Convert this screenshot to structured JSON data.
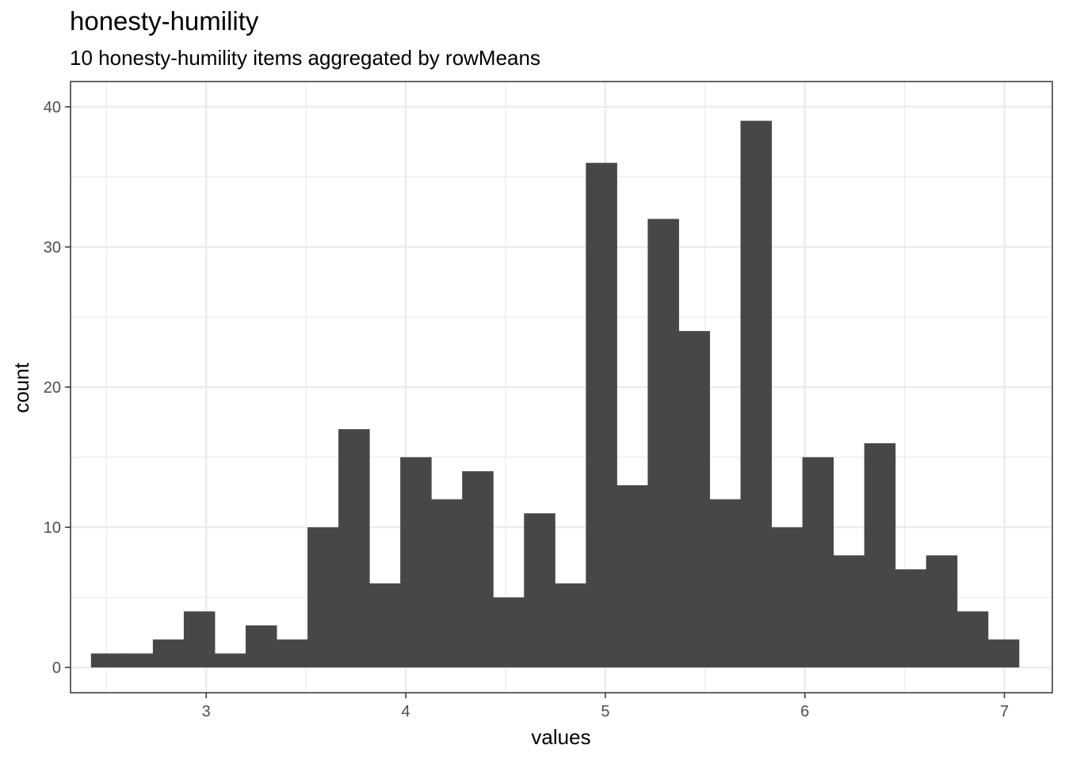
{
  "chart_data": {
    "type": "bar",
    "title": "honesty-humility",
    "subtitle": "10 honesty-humility items aggregated by rowMeans",
    "xlabel": "values",
    "ylabel": "count",
    "xlim": [
      2.32,
      7.24
    ],
    "ylim": [
      -1.8,
      41.8
    ],
    "xticks": [
      3,
      4,
      5,
      6,
      7
    ],
    "yticks": [
      0,
      10,
      20,
      30,
      40
    ],
    "grid": true,
    "bin_width": 0.155,
    "bins": [
      {
        "x": 2.5,
        "count": 1
      },
      {
        "x": 2.655,
        "count": 1
      },
      {
        "x": 2.81,
        "count": 2
      },
      {
        "x": 2.965,
        "count": 4
      },
      {
        "x": 3.12,
        "count": 1
      },
      {
        "x": 3.275,
        "count": 3
      },
      {
        "x": 3.43,
        "count": 2
      },
      {
        "x": 3.585,
        "count": 10
      },
      {
        "x": 3.74,
        "count": 17
      },
      {
        "x": 3.895,
        "count": 6
      },
      {
        "x": 4.05,
        "count": 15
      },
      {
        "x": 4.205,
        "count": 12
      },
      {
        "x": 4.36,
        "count": 14
      },
      {
        "x": 4.515,
        "count": 5
      },
      {
        "x": 4.67,
        "count": 11
      },
      {
        "x": 4.825,
        "count": 6
      },
      {
        "x": 4.98,
        "count": 36
      },
      {
        "x": 5.135,
        "count": 13
      },
      {
        "x": 5.29,
        "count": 32
      },
      {
        "x": 5.445,
        "count": 24
      },
      {
        "x": 5.6,
        "count": 12
      },
      {
        "x": 5.755,
        "count": 39
      },
      {
        "x": 5.91,
        "count": 10
      },
      {
        "x": 6.065,
        "count": 15
      },
      {
        "x": 6.22,
        "count": 8
      },
      {
        "x": 6.375,
        "count": 16
      },
      {
        "x": 6.53,
        "count": 7
      },
      {
        "x": 6.685,
        "count": 8
      },
      {
        "x": 6.84,
        "count": 4
      },
      {
        "x": 6.995,
        "count": 2
      }
    ],
    "colors": {
      "bar": "#474747",
      "grid": "#ebebeb",
      "panel_border": "#333333"
    }
  }
}
